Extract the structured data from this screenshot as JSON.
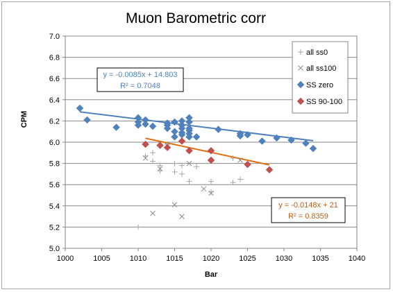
{
  "chart_data": {
    "type": "scatter",
    "title": "Muon Barometric corr",
    "xlabel": "Bar",
    "ylabel": "CPM",
    "xlim": [
      1000,
      1040
    ],
    "ylim": [
      5.0,
      7.0
    ],
    "x_ticks": [
      "1000",
      "1005",
      "1010",
      "1015",
      "1020",
      "1025",
      "1030",
      "1035",
      "1040"
    ],
    "y_ticks": [
      "5.0",
      "5.2",
      "5.4",
      "5.6",
      "5.8",
      "6.0",
      "6.2",
      "6.4",
      "6.6",
      "6.8",
      "7.0"
    ],
    "grid": "horizontal",
    "legend_position": "top-right",
    "series": [
      {
        "name": "all ss0",
        "marker": "plus",
        "color": "#a6a6a6",
        "points": [
          [
            1011,
            5.87
          ],
          [
            1012,
            5.9
          ],
          [
            1012,
            5.82
          ],
          [
            1013,
            5.78
          ],
          [
            1013,
            5.73
          ],
          [
            1014,
            5.98
          ],
          [
            1015,
            5.8
          ],
          [
            1015,
            5.72
          ],
          [
            1016,
            5.78
          ],
          [
            1016,
            5.7
          ],
          [
            1017,
            5.63
          ],
          [
            1018,
            5.77
          ],
          [
            1020,
            5.63
          ],
          [
            1020,
            5.53
          ],
          [
            1023,
            5.62
          ],
          [
            1023,
            5.85
          ],
          [
            1024,
            5.65
          ],
          [
            1010,
            5.2
          ]
        ]
      },
      {
        "name": "all ss100",
        "marker": "cross",
        "color": "#8c8c8c",
        "points": [
          [
            1011,
            5.85
          ],
          [
            1012,
            5.33
          ],
          [
            1013,
            5.75
          ],
          [
            1014,
            5.97
          ],
          [
            1015,
            5.41
          ],
          [
            1016,
            5.3
          ],
          [
            1017,
            5.8
          ],
          [
            1019,
            5.56
          ],
          [
            1020,
            5.52
          ],
          [
            1024,
            5.83
          ]
        ]
      },
      {
        "name": "SS zero",
        "marker": "diamond",
        "color": "#4f81bd",
        "points": [
          [
            1002,
            6.32
          ],
          [
            1003,
            6.21
          ],
          [
            1007,
            6.14
          ],
          [
            1010,
            6.23
          ],
          [
            1010,
            6.19
          ],
          [
            1010,
            6.16
          ],
          [
            1011,
            6.21
          ],
          [
            1011,
            6.17
          ],
          [
            1012,
            6.15
          ],
          [
            1014,
            6.18
          ],
          [
            1014,
            6.16
          ],
          [
            1014,
            6.13
          ],
          [
            1015,
            6.19
          ],
          [
            1015,
            6.1
          ],
          [
            1015,
            6.05
          ],
          [
            1016,
            6.16
          ],
          [
            1016,
            6.13
          ],
          [
            1016,
            6.09
          ],
          [
            1016,
            6.07
          ],
          [
            1016,
            6.2
          ],
          [
            1017,
            6.23
          ],
          [
            1017,
            6.19
          ],
          [
            1017,
            6.13
          ],
          [
            1017,
            6.11
          ],
          [
            1017,
            6.08
          ],
          [
            1017,
            6.05
          ],
          [
            1018,
            6.05
          ],
          [
            1021,
            6.12
          ],
          [
            1024,
            6.08
          ],
          [
            1024,
            6.06
          ],
          [
            1025,
            6.07
          ],
          [
            1027,
            6.01
          ],
          [
            1029,
            6.04
          ],
          [
            1031,
            6.02
          ],
          [
            1033,
            5.99
          ],
          [
            1034,
            5.94
          ]
        ]
      },
      {
        "name": "SS 90-100",
        "marker": "diamond",
        "color": "#c0504d",
        "points": [
          [
            1011,
            5.98
          ],
          [
            1013,
            5.97
          ],
          [
            1014,
            5.95
          ],
          [
            1016,
            6.01
          ],
          [
            1017,
            5.92
          ],
          [
            1020,
            5.92
          ],
          [
            1020,
            5.83
          ],
          [
            1025,
            5.79
          ],
          [
            1028,
            5.74
          ]
        ]
      }
    ],
    "trendlines": [
      {
        "series": "SS zero",
        "slope": -0.0085,
        "intercept": 14.803,
        "x_range": [
          1002,
          1034
        ],
        "color": "#4f81bd",
        "equation": "y = -0.0085x + 14.803",
        "r2": "R² = 0.7048"
      },
      {
        "series": "SS 90-100",
        "slope": -0.0148,
        "intercept": 21,
        "x_range": [
          1011,
          1028
        ],
        "color": "#e36c09",
        "equation": "y = -0.0148x + 21",
        "r2": "R² = 0.8359"
      }
    ]
  }
}
